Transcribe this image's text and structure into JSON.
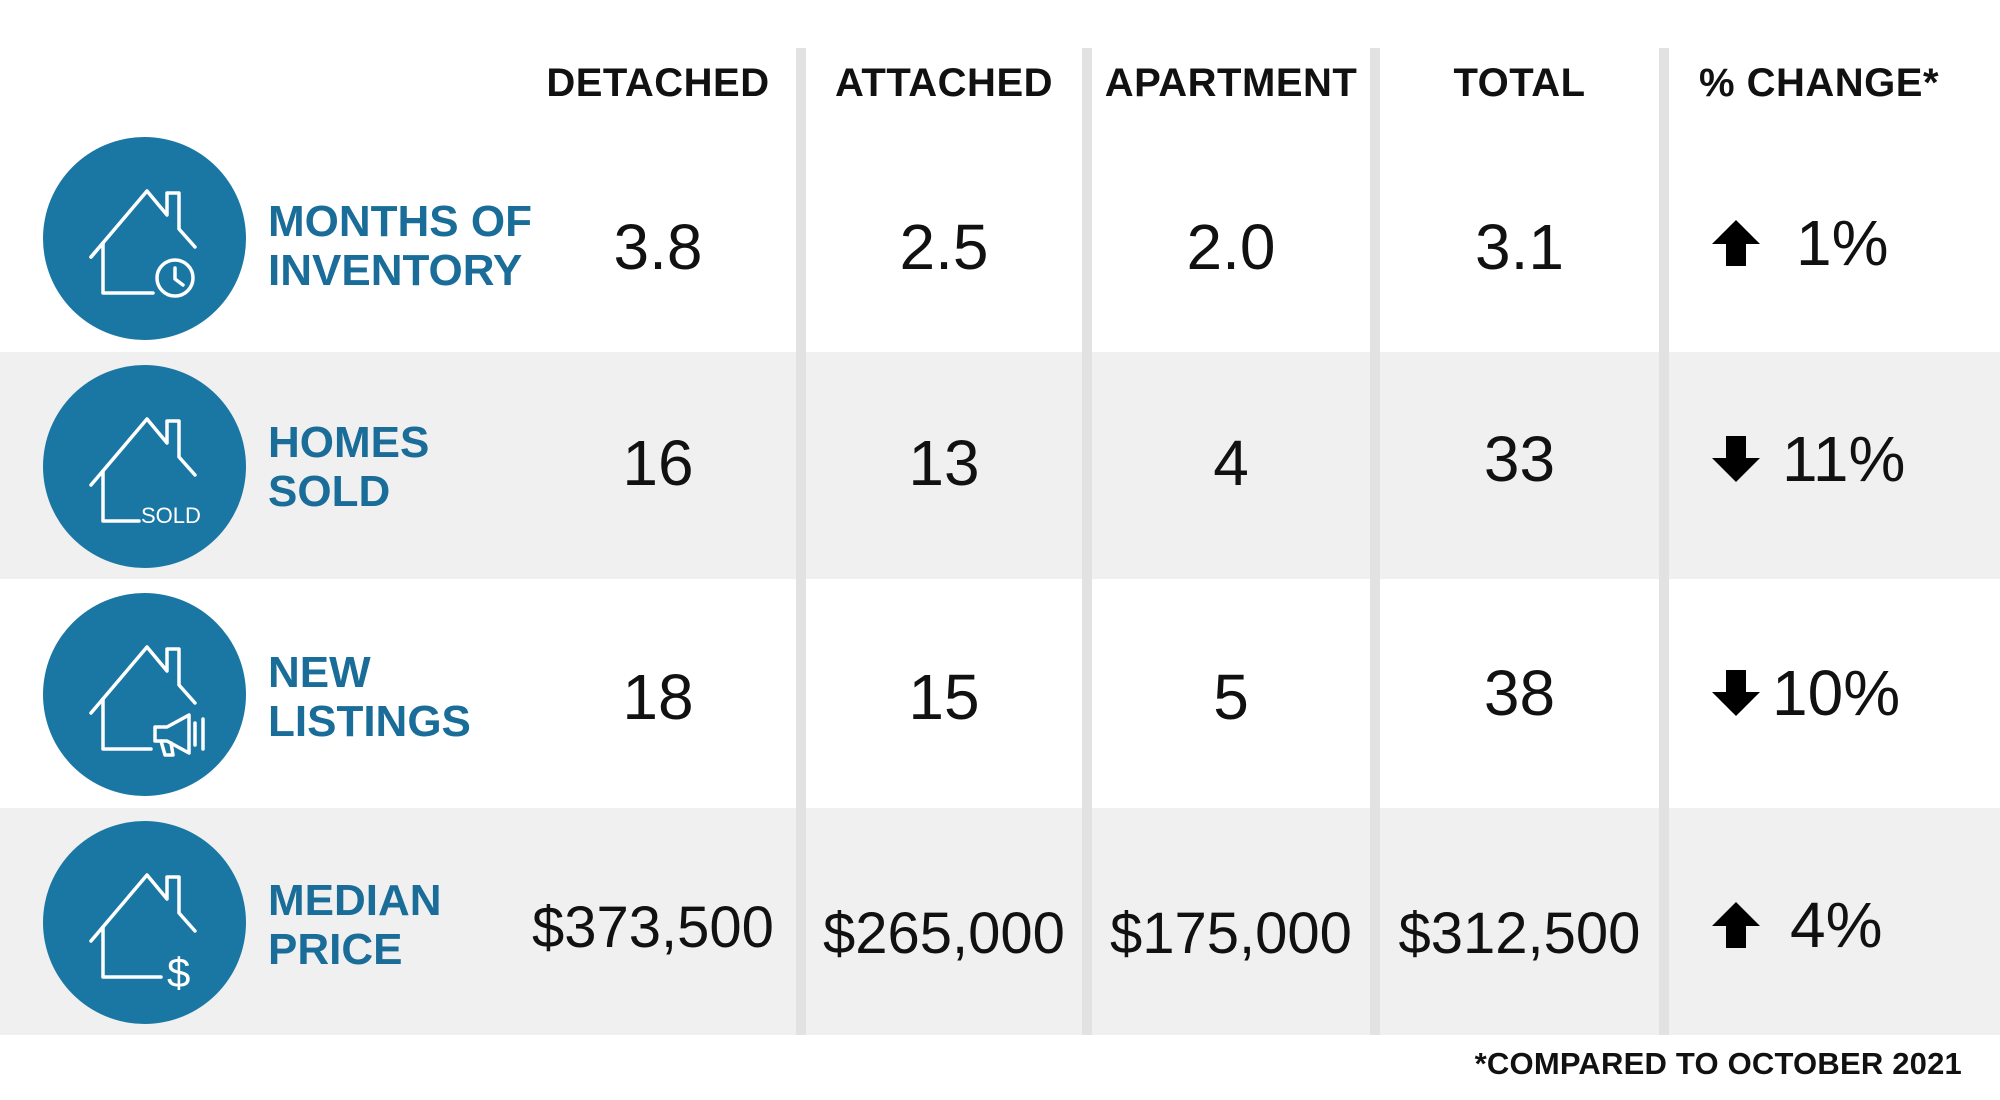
{
  "colors": {
    "accent": "#1a77a4",
    "label_text": "#1a6d98",
    "row_band": "#f0f0f0",
    "divider": "#e2e2e2"
  },
  "columns": [
    "DETACHED",
    "ATTACHED",
    "APARTMENT",
    "TOTAL",
    "% CHANGE*"
  ],
  "rows": [
    {
      "icon": "house-clock-icon",
      "label_line1": "MONTHS OF",
      "label_line2": "INVENTORY",
      "detached": "3.8",
      "attached": "2.5",
      "apartment": "2.0",
      "total": "3.1",
      "change_direction": "up",
      "change": "1%"
    },
    {
      "icon": "house-sold-icon",
      "icon_text": "SOLD",
      "label_line1": "HOMES",
      "label_line2": "SOLD",
      "detached": "16",
      "attached": "13",
      "apartment": "4",
      "total": "33",
      "change_direction": "down",
      "change": "11%"
    },
    {
      "icon": "house-megaphone-icon",
      "label_line1": "NEW",
      "label_line2": "LISTINGS",
      "detached": "18",
      "attached": "15",
      "apartment": "5",
      "total": "38",
      "change_direction": "down",
      "change": "10%"
    },
    {
      "icon": "house-dollar-icon",
      "label_line1": "MEDIAN",
      "label_line2": "PRICE",
      "detached": "$373,500",
      "attached": "$265,000",
      "apartment": "$175,000",
      "total": "$312,500",
      "change_direction": "up",
      "change": "4%"
    }
  ],
  "footnote": "*COMPARED TO OCTOBER 2021"
}
